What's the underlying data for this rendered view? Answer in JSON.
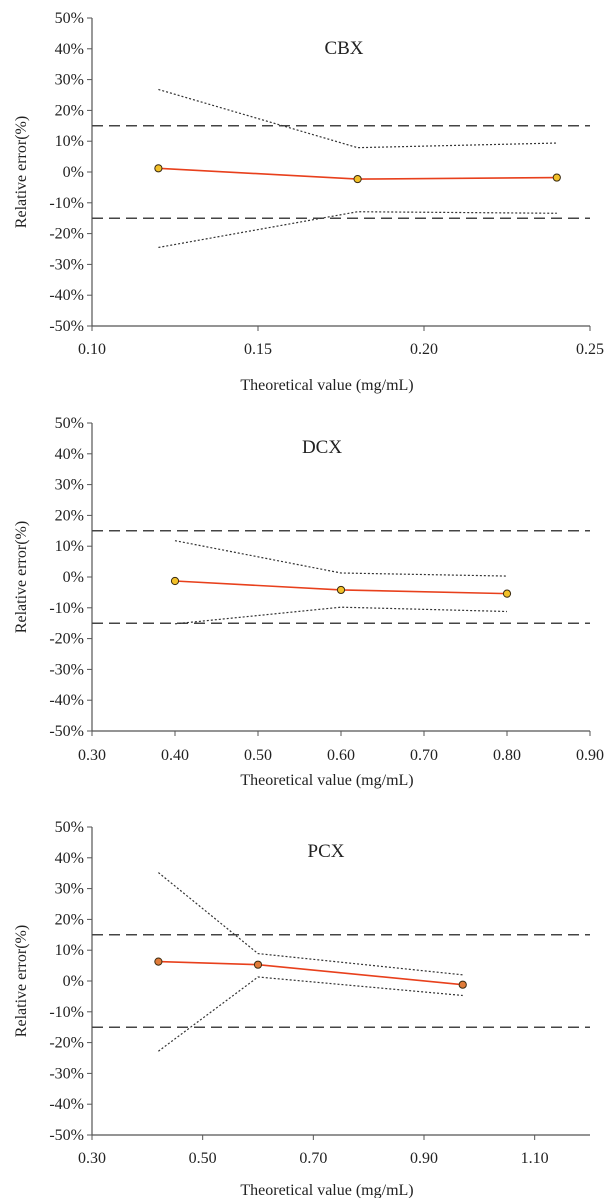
{
  "figure": {
    "colors": {
      "center_line": "#e8401c",
      "marker_fill_yellow": "#f2c028",
      "marker_fill_orange": "#e07b39",
      "marker_stroke": "#3a2a10",
      "limit_line": "#444444",
      "interval_line": "#333333",
      "axis": "#555555",
      "text": "#222222"
    }
  },
  "chart_data": [
    {
      "type": "line",
      "title": "CBX",
      "xlabel": "Theoretical value (mg/mL)",
      "ylabel": "Relative error(%)",
      "xlim": [
        0.1,
        0.25
      ],
      "ylim": [
        -50,
        50
      ],
      "x_ticks": [
        "0.10",
        "0.15",
        "0.20",
        "0.25"
      ],
      "x_tick_values": [
        0.1,
        0.15,
        0.2,
        0.25
      ],
      "y_ticks": [
        "50%",
        "40%",
        "30%",
        "20%",
        "10%",
        "0%",
        "-10%",
        "-20%",
        "-30%",
        "-40%",
        "-50%"
      ],
      "y_tick_values": [
        50,
        40,
        30,
        20,
        10,
        0,
        -10,
        -20,
        -30,
        -40,
        -50
      ],
      "acceptance_limits": [
        15,
        -15
      ],
      "x": [
        0.12,
        0.18,
        0.24
      ],
      "series": [
        {
          "role": "mean",
          "values": [
            1.2,
            -2.3,
            -1.8
          ],
          "marker": "yellow"
        },
        {
          "role": "upper",
          "values": [
            26.8,
            7.9,
            9.4
          ]
        },
        {
          "role": "lower",
          "values": [
            -24.5,
            -12.9,
            -13.4
          ]
        }
      ]
    },
    {
      "type": "line",
      "title": "DCX",
      "xlabel": "Theoretical value (mg/mL)",
      "ylabel": "Relative error(%)",
      "xlim": [
        0.3,
        0.9
      ],
      "ylim": [
        -50,
        50
      ],
      "x_ticks": [
        "0.30",
        "0.40",
        "0.50",
        "0.60",
        "0.70",
        "0.80",
        "0.90"
      ],
      "x_tick_values": [
        0.3,
        0.4,
        0.5,
        0.6,
        0.7,
        0.8,
        0.9
      ],
      "y_ticks": [
        "50%",
        "40%",
        "30%",
        "20%",
        "10%",
        "0%",
        "-10%",
        "-20%",
        "-30%",
        "-40%",
        "-50%"
      ],
      "y_tick_values": [
        50,
        40,
        30,
        20,
        10,
        0,
        -10,
        -20,
        -30,
        -40,
        -50
      ],
      "acceptance_limits": [
        15,
        -15
      ],
      "x": [
        0.4,
        0.6,
        0.8
      ],
      "series": [
        {
          "role": "mean",
          "values": [
            -1.3,
            -4.2,
            -5.4
          ],
          "marker": "yellow"
        },
        {
          "role": "upper",
          "values": [
            11.8,
            1.3,
            0.3
          ]
        },
        {
          "role": "lower",
          "values": [
            -15.2,
            -9.8,
            -11.2
          ]
        }
      ]
    },
    {
      "type": "line",
      "title": "PCX",
      "xlabel": "Theoretical value (mg/mL)",
      "ylabel": "Relative error(%)",
      "xlim": [
        0.3,
        1.2
      ],
      "ylim": [
        -50,
        50
      ],
      "x_ticks": [
        "0.30",
        "0.50",
        "0.70",
        "0.90",
        "1.10"
      ],
      "x_tick_values": [
        0.3,
        0.5,
        0.7,
        0.9,
        1.1
      ],
      "y_ticks": [
        "50%",
        "40%",
        "30%",
        "20%",
        "10%",
        "0%",
        "-10%",
        "-20%",
        "-30%",
        "-40%",
        "-50%"
      ],
      "y_tick_values": [
        50,
        40,
        30,
        20,
        10,
        0,
        -10,
        -20,
        -30,
        -40,
        -50
      ],
      "acceptance_limits": [
        15,
        -15
      ],
      "x": [
        0.42,
        0.6,
        0.97
      ],
      "series": [
        {
          "role": "mean",
          "values": [
            6.3,
            5.3,
            -1.2
          ],
          "marker": "orange"
        },
        {
          "role": "upper",
          "values": [
            35.2,
            8.9,
            2.0
          ]
        },
        {
          "role": "lower",
          "values": [
            -22.8,
            1.3,
            -4.7
          ]
        }
      ]
    }
  ]
}
